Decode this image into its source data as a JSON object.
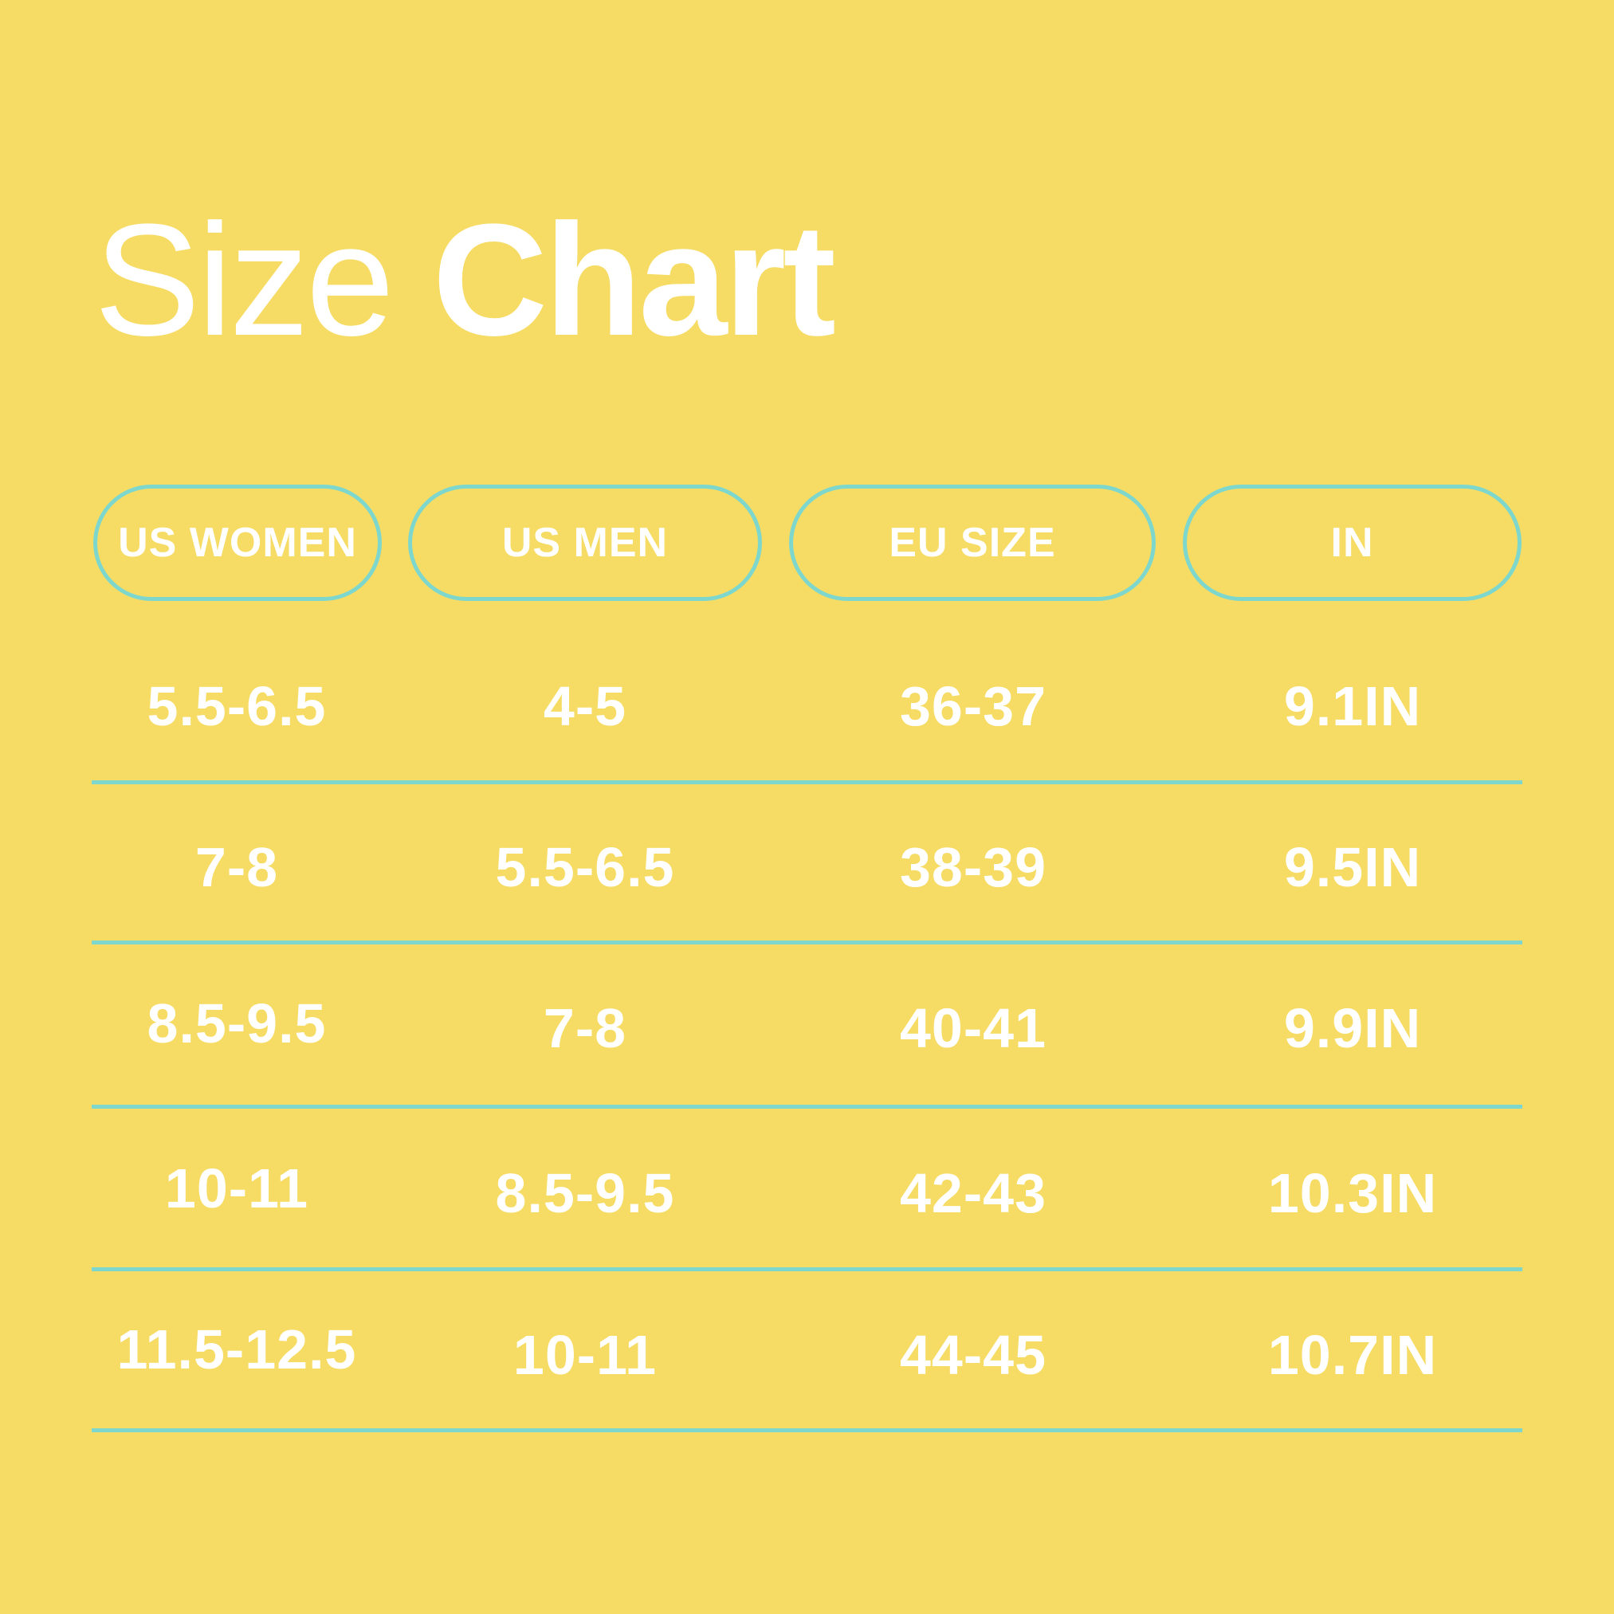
{
  "title": {
    "light": "Size",
    "bold": "Chart"
  },
  "headers": [
    "US WOMEN",
    "US MEN",
    "EU SIZE",
    "IN"
  ],
  "rows": [
    [
      "5.5-6.5",
      "4-5",
      "36-37",
      "9.1IN"
    ],
    [
      "7-8",
      "5.5-6.5",
      "38-39",
      "9.5IN"
    ],
    [
      "8.5-9.5",
      "7-8",
      "40-41",
      "9.9IN"
    ],
    [
      "10-11",
      "8.5-9.5",
      "42-43",
      "10.3IN"
    ],
    [
      "11.5-12.5",
      "10-11",
      "44-45",
      "10.7IN"
    ]
  ],
  "colors": {
    "background": "#f6dc64",
    "accent": "#7ed7cd",
    "text": "#ffffff"
  }
}
